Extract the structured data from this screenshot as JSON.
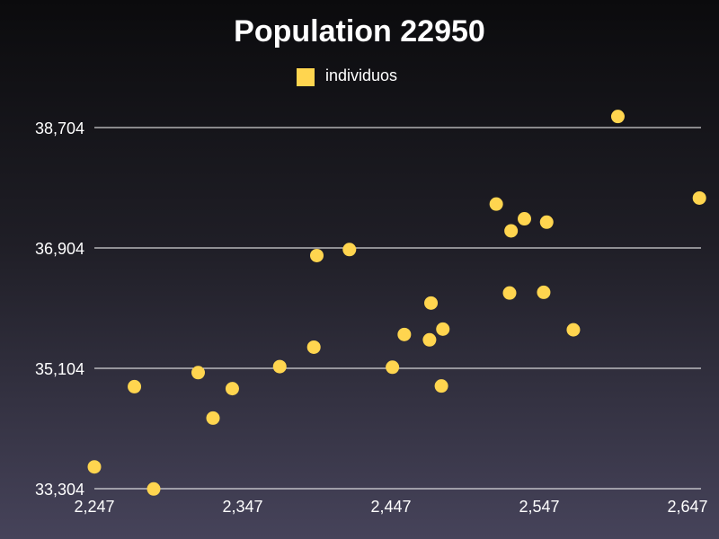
{
  "chart_data": {
    "type": "scatter",
    "title": "Population 22950",
    "legend": {
      "entries": [
        "individuos"
      ],
      "position": "top-center"
    },
    "series": [
      {
        "name": "individuos",
        "color": "#ffd54f",
        "points": [
          {
            "x": 2247,
            "y": 33630
          },
          {
            "x": 2274,
            "y": 34830
          },
          {
            "x": 2287,
            "y": 33300
          },
          {
            "x": 2317,
            "y": 35040
          },
          {
            "x": 2327,
            "y": 34360
          },
          {
            "x": 2340,
            "y": 34800
          },
          {
            "x": 2372,
            "y": 35130
          },
          {
            "x": 2395,
            "y": 35420
          },
          {
            "x": 2397,
            "y": 36790
          },
          {
            "x": 2419,
            "y": 36880
          },
          {
            "x": 2448,
            "y": 35120
          },
          {
            "x": 2456,
            "y": 35610
          },
          {
            "x": 2473,
            "y": 35530
          },
          {
            "x": 2474,
            "y": 36080
          },
          {
            "x": 2482,
            "y": 35690
          },
          {
            "x": 2481,
            "y": 34840
          },
          {
            "x": 2518,
            "y": 37560
          },
          {
            "x": 2527,
            "y": 36230
          },
          {
            "x": 2528,
            "y": 37160
          },
          {
            "x": 2537,
            "y": 37340
          },
          {
            "x": 2550,
            "y": 36240
          },
          {
            "x": 2552,
            "y": 37290
          },
          {
            "x": 2570,
            "y": 35680
          },
          {
            "x": 2600,
            "y": 38870
          },
          {
            "x": 2655,
            "y": 37650
          }
        ]
      }
    ],
    "x_ticks": [
      "2,247",
      "2,347",
      "2,447",
      "2,547",
      "2,647"
    ],
    "y_ticks": [
      "38,704",
      "36,904",
      "35,104",
      "33,304"
    ],
    "xlim": [
      2247,
      2647
    ],
    "ylim": [
      33304,
      38704
    ],
    "grid": {
      "horizontal": true,
      "vertical": false
    }
  }
}
